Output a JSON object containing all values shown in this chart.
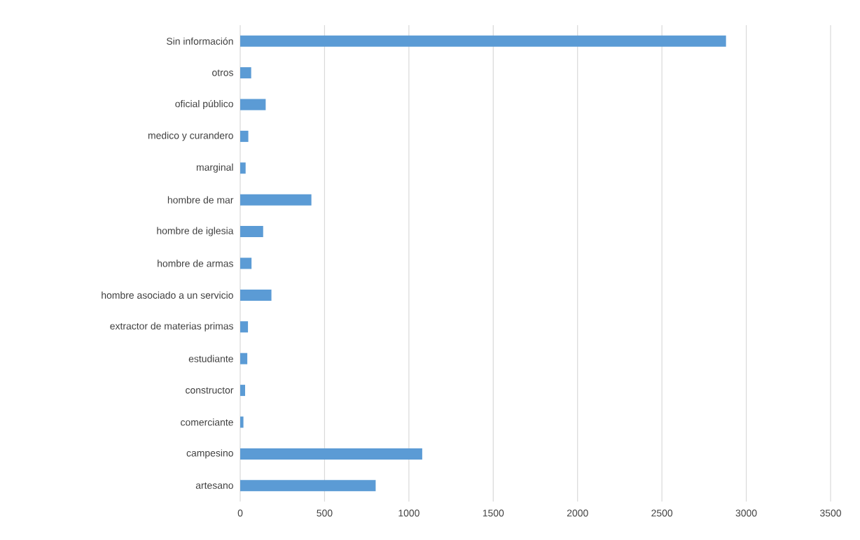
{
  "chart_data": {
    "type": "bar",
    "orientation": "horizontal",
    "categories": [
      "Sin información",
      "otros",
      "oficial público",
      "medico y curandero",
      "marginal",
      "hombre de mar",
      "hombre de iglesia",
      "hombre de armas",
      "hombre asociado a un servicio",
      "extractor de materias primas",
      "estudiante",
      "constructor",
      "comerciante",
      "campesino",
      "artesano"
    ],
    "values": [
      2880,
      65,
      151,
      48,
      32,
      422,
      136,
      67,
      185,
      46,
      42,
      29,
      19,
      1079,
      803
    ],
    "color": "#5b9bd5",
    "xlim": [
      0,
      3500
    ],
    "xticks": [
      0,
      500,
      1000,
      1500,
      2000,
      2500,
      3000,
      3500
    ],
    "grid": "x"
  }
}
